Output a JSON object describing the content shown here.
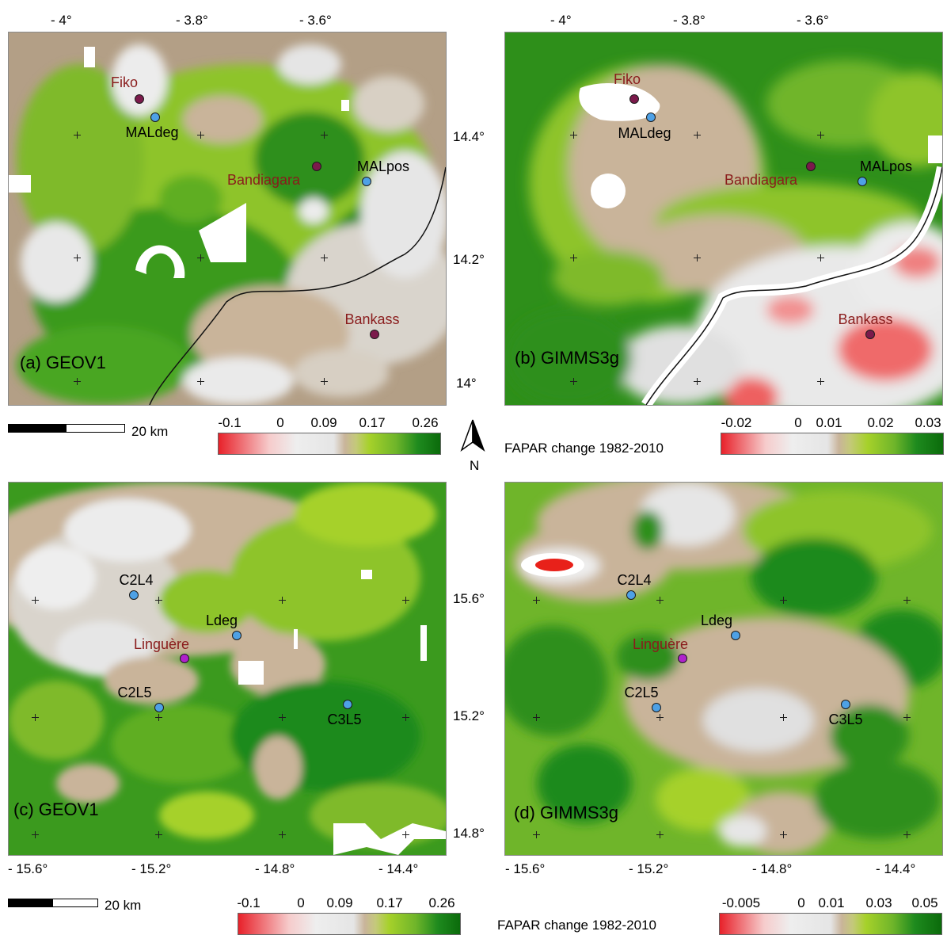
{
  "units": {
    "scale_label": "20  km",
    "north": "N",
    "legend_title": "FAPAR change 1982-2010"
  },
  "top_lon_ticks": [
    "- 4°",
    "- 3.8°",
    "- 3.6°"
  ],
  "top_lat_ticks": [
    "14.4°",
    "14.2°",
    "14°"
  ],
  "bottom_lon_ticks": [
    "- 15.6°",
    "- 15.2°",
    "- 14.8°",
    "- 14.4°"
  ],
  "bottom_lat_ticks": [
    "15.6°",
    "15.2°",
    "14.8°"
  ],
  "panels": {
    "a": {
      "label": "(a) GEOV1"
    },
    "b": {
      "label": "(b) GIMMS3g"
    },
    "c": {
      "label": "(c) GEOV1"
    },
    "d": {
      "label": "(d) GIMMS3g"
    }
  },
  "sites_top": {
    "fiko": "Fiko",
    "maldeg": "MALdeg",
    "bandiagara": "Bandiagara",
    "malpos": "MALpos",
    "bankass": "Bankass"
  },
  "sites_bottom": {
    "c2l4": "C2L4",
    "ldeg": "Ldeg",
    "linguere": "Linguère",
    "c2l5": "C2L5",
    "c3l5": "C3L5"
  },
  "legends": {
    "a": [
      "-0.1",
      "0",
      "0.09",
      "0.17",
      "0.26"
    ],
    "b": [
      "-0.02",
      "0",
      "0.01",
      "0.02",
      "0.03"
    ],
    "c": [
      "-0.1",
      "0",
      "0.09",
      "0.17",
      "0.26"
    ],
    "d": [
      "-0.005",
      "0",
      "0.01",
      "0.03",
      "0.05"
    ]
  },
  "colors": {
    "red": "#e8212a",
    "white": "#f2f2f2",
    "tan": "#c9b49a",
    "lightgreen": "#a6d12a",
    "green": "#1e8a1e",
    "darkgreen": "#0b6b0b",
    "site_blue": "#4ea1e6",
    "town": "#8a1c1c"
  }
}
